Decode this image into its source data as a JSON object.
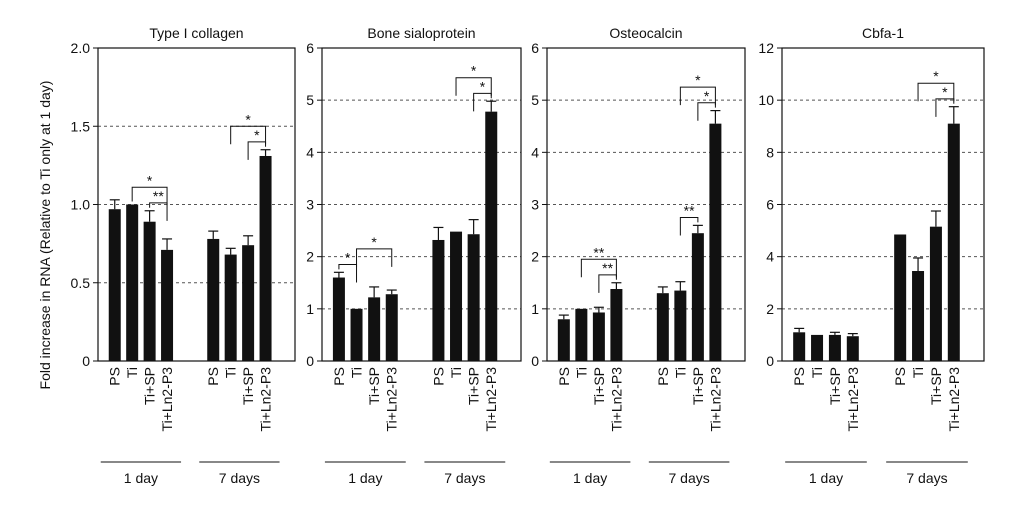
{
  "ylabel": "Fold increase in RNA (Relative to Ti only at 1 day)",
  "groups": [
    "1 day",
    "7 days"
  ],
  "conditions": [
    "PS",
    "Ti",
    "Ti+SP",
    "Ti+Ln2-P3"
  ],
  "colors": {
    "bar": "#111111",
    "axis": "#111111",
    "grid": "#555555",
    "background": "#ffffff"
  },
  "chart_data": [
    {
      "type": "bar",
      "title": "Type I collagen",
      "ylim": [
        0,
        2.0
      ],
      "yticks": [
        "0",
        "0.5",
        "1.0",
        "1.5",
        "2.0"
      ],
      "ytick_values": [
        0,
        0.5,
        1.0,
        1.5,
        2.0
      ],
      "categories": [
        "PS",
        "Ti",
        "Ti+SP",
        "Ti+Ln2-P3",
        "PS",
        "Ti",
        "Ti+SP",
        "Ti+Ln2-P3"
      ],
      "groups": [
        "1 day",
        "1 day",
        "1 day",
        "1 day",
        "7 days",
        "7 days",
        "7 days",
        "7 days"
      ],
      "values": [
        0.97,
        1.0,
        0.89,
        0.71,
        0.78,
        0.68,
        0.74,
        1.31
      ],
      "errors": [
        0.06,
        0.0,
        0.07,
        0.07,
        0.05,
        0.04,
        0.06,
        0.04
      ],
      "significance": [
        {
          "from": 1,
          "to": 3,
          "label": "*"
        },
        {
          "from": 2,
          "to": 3,
          "label": "**"
        },
        {
          "from": 5,
          "to": 7,
          "label": "*"
        },
        {
          "from": 6,
          "to": 7,
          "label": "*"
        }
      ]
    },
    {
      "type": "bar",
      "title": "Bone sialoprotein",
      "ylim": [
        0,
        6
      ],
      "yticks": [
        "0",
        "1",
        "2",
        "3",
        "4",
        "5",
        "6"
      ],
      "ytick_values": [
        0,
        1,
        2,
        3,
        4,
        5,
        6
      ],
      "categories": [
        "PS",
        "Ti",
        "Ti+SP",
        "Ti+Ln2-P3",
        "PS",
        "Ti",
        "Ti+SP",
        "Ti+Ln2-P3"
      ],
      "groups": [
        "1 day",
        "1 day",
        "1 day",
        "1 day",
        "7 days",
        "7 days",
        "7 days",
        "7 days"
      ],
      "values": [
        1.6,
        1.0,
        1.22,
        1.28,
        2.32,
        2.48,
        2.43,
        4.78
      ],
      "errors": [
        0.1,
        0.0,
        0.2,
        0.08,
        0.24,
        0.0,
        0.28,
        0.2
      ],
      "significance": [
        {
          "from": 0,
          "to": 1,
          "label": "*"
        },
        {
          "from": 1,
          "to": 3,
          "label": "*"
        },
        {
          "from": 5,
          "to": 7,
          "label": "*"
        },
        {
          "from": 6,
          "to": 7,
          "label": "*"
        }
      ]
    },
    {
      "type": "bar",
      "title": "Osteocalcin",
      "ylim": [
        0,
        6
      ],
      "yticks": [
        "0",
        "1",
        "2",
        "3",
        "4",
        "5",
        "6"
      ],
      "ytick_values": [
        0,
        1,
        2,
        3,
        4,
        5,
        6
      ],
      "categories": [
        "PS",
        "Ti",
        "Ti+SP",
        "Ti+Ln2-P3",
        "PS",
        "Ti",
        "Ti+SP",
        "Ti+Ln2-P3"
      ],
      "groups": [
        "1 day",
        "1 day",
        "1 day",
        "1 day",
        "7 days",
        "7 days",
        "7 days",
        "7 days"
      ],
      "values": [
        0.8,
        1.0,
        0.93,
        1.38,
        1.3,
        1.35,
        2.45,
        4.55
      ],
      "errors": [
        0.08,
        0.0,
        0.1,
        0.12,
        0.12,
        0.17,
        0.15,
        0.25
      ],
      "significance": [
        {
          "from": 1,
          "to": 3,
          "label": "**"
        },
        {
          "from": 2,
          "to": 3,
          "label": "**"
        },
        {
          "from": 5,
          "to": 6,
          "label": "**"
        },
        {
          "from": 5,
          "to": 7,
          "label": "*"
        },
        {
          "from": 6,
          "to": 7,
          "label": "*"
        }
      ]
    },
    {
      "type": "bar",
      "title": "Cbfa-1",
      "ylim": [
        0,
        12
      ],
      "yticks": [
        "0",
        "2",
        "4",
        "6",
        "8",
        "10",
        "12"
      ],
      "ytick_values": [
        0,
        2,
        4,
        6,
        8,
        10,
        12
      ],
      "categories": [
        "PS",
        "Ti",
        "Ti+SP",
        "Ti+Ln2-P3",
        "PS",
        "Ti",
        "Ti+SP",
        "Ti+Ln2-P3"
      ],
      "groups": [
        "1 day",
        "1 day",
        "1 day",
        "1 day",
        "7 days",
        "7 days",
        "7 days",
        "7 days"
      ],
      "values": [
        1.1,
        1.0,
        1.0,
        0.95,
        4.85,
        3.45,
        5.15,
        9.1
      ],
      "errors": [
        0.15,
        0.0,
        0.1,
        0.1,
        0.0,
        0.5,
        0.6,
        0.65
      ],
      "significance": [
        {
          "from": 5,
          "to": 7,
          "label": "*"
        },
        {
          "from": 6,
          "to": 7,
          "label": "*"
        }
      ]
    }
  ]
}
